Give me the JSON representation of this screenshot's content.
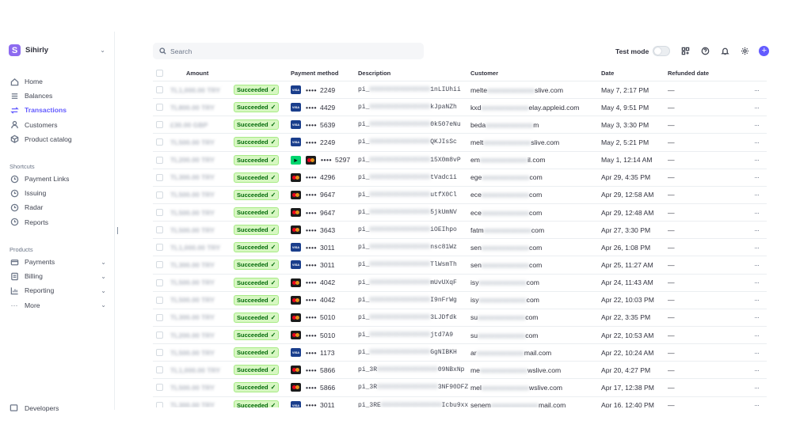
{
  "account": {
    "name": "Sihirly",
    "logo_letter": "S"
  },
  "nav": [
    {
      "label": "Home",
      "icon": "home-icon",
      "active": false
    },
    {
      "label": "Balances",
      "icon": "balances-icon",
      "active": false
    },
    {
      "label": "Transactions",
      "icon": "transactions-icon",
      "active": true
    },
    {
      "label": "Customers",
      "icon": "customers-icon",
      "active": false
    },
    {
      "label": "Product catalog",
      "icon": "product-catalog-icon",
      "active": false
    }
  ],
  "shortcuts": {
    "title": "Shortcuts",
    "items": [
      {
        "label": "Payment Links",
        "icon": "clock-icon"
      },
      {
        "label": "Issuing",
        "icon": "clock-icon"
      },
      {
        "label": "Radar",
        "icon": "clock-icon"
      },
      {
        "label": "Reports",
        "icon": "clock-icon"
      }
    ]
  },
  "products": {
    "title": "Products",
    "items": [
      {
        "label": "Payments",
        "icon": "payments-icon"
      },
      {
        "label": "Billing",
        "icon": "billing-icon"
      },
      {
        "label": "Reporting",
        "icon": "reporting-icon"
      },
      {
        "label": "More",
        "icon": "more-icon"
      }
    ]
  },
  "developers_label": "Developers",
  "search": {
    "placeholder": "Search",
    "value": ""
  },
  "topbar": {
    "test_mode_label": "Test mode",
    "test_mode_on": false
  },
  "colors": {
    "accent": "#635bff",
    "success_bg": "#d7f7c2",
    "success_text": "#006908"
  },
  "table": {
    "columns": {
      "amount": "Amount",
      "payment_method": "Payment method",
      "description": "Description",
      "customer": "Customer",
      "date": "Date",
      "refunded_date": "Refunded date"
    },
    "rows": [
      {
        "amount": "TL1,000.00 TRY",
        "status": "Succeeded",
        "card": "visa",
        "last4": "2249",
        "desc_prefix": "pi_",
        "desc_suffix": "1nLIUhii",
        "cust_prefix": "melte",
        "cust_suffix": "slive.com",
        "date": "May 7, 2:17 PM",
        "refunded": "—"
      },
      {
        "amount": "TL800.00 TRY",
        "status": "Succeeded",
        "card": "visa",
        "last4": "4429",
        "desc_prefix": "pi_",
        "desc_suffix": "kJpaNZh",
        "cust_prefix": "kxd",
        "cust_suffix": "elay.appleid.com",
        "date": "May 4, 9:51 PM",
        "refunded": "—"
      },
      {
        "amount": "£30.00 GBP",
        "status": "Succeeded",
        "card": "visa",
        "last4": "5639",
        "desc_prefix": "pi_",
        "desc_suffix": "0k507eNu",
        "cust_prefix": "beda",
        "cust_suffix": "m",
        "date": "May 3, 3:30 PM",
        "refunded": "—"
      },
      {
        "amount": "TL500.00 TRY",
        "status": "Succeeded",
        "card": "visa",
        "last4": "2249",
        "desc_prefix": "pi_",
        "desc_suffix": "QKJIsSc",
        "cust_prefix": "melt",
        "cust_suffix": "slive.com",
        "date": "May 2, 5:21 PM",
        "refunded": "—"
      },
      {
        "amount": "TL200.00 TRY",
        "status": "Succeeded",
        "card": "link",
        "last4": "5297",
        "desc_prefix": "pi_",
        "desc_suffix": "15X0m8vP",
        "cust_prefix": "em",
        "cust_suffix": "il.com",
        "date": "May 1, 12:14 AM",
        "refunded": "—"
      },
      {
        "amount": "TL300.00 TRY",
        "status": "Succeeded",
        "card": "mc",
        "last4": "4296",
        "desc_prefix": "pi_",
        "desc_suffix": "tVadc1i",
        "cust_prefix": "ege",
        "cust_suffix": "com",
        "date": "Apr 29, 4:35 PM",
        "refunded": "—"
      },
      {
        "amount": "TL500.00 TRY",
        "status": "Succeeded",
        "card": "mc",
        "last4": "9647",
        "desc_prefix": "pi_",
        "desc_suffix": "utfX0Cl",
        "cust_prefix": "ece",
        "cust_suffix": "com",
        "date": "Apr 29, 12:58 AM",
        "refunded": "—"
      },
      {
        "amount": "TL500.00 TRY",
        "status": "Succeeded",
        "card": "mc",
        "last4": "9647",
        "desc_prefix": "pi_",
        "desc_suffix": "5jkUmNV",
        "cust_prefix": "ece",
        "cust_suffix": "com",
        "date": "Apr 29, 12:48 AM",
        "refunded": "—"
      },
      {
        "amount": "TL500.00 TRY",
        "status": "Succeeded",
        "card": "mc",
        "last4": "3643",
        "desc_prefix": "pi_",
        "desc_suffix": "iOEIhpo",
        "cust_prefix": "fatm",
        "cust_suffix": "com",
        "date": "Apr 27, 3:30 PM",
        "refunded": "—"
      },
      {
        "amount": "TL1,000.00 TRY",
        "status": "Succeeded",
        "card": "visa",
        "last4": "3011",
        "desc_prefix": "pi_",
        "desc_suffix": "nsc81Wz",
        "cust_prefix": "sen",
        "cust_suffix": "com",
        "date": "Apr 26, 1:08 PM",
        "refunded": "—"
      },
      {
        "amount": "TL300.00 TRY",
        "status": "Succeeded",
        "card": "visa",
        "last4": "3011",
        "desc_prefix": "pi_",
        "desc_suffix": "TlWsmTh",
        "cust_prefix": "sen",
        "cust_suffix": "com",
        "date": "Apr 25, 11:27 AM",
        "refunded": "—"
      },
      {
        "amount": "TL500.00 TRY",
        "status": "Succeeded",
        "card": "mc",
        "last4": "4042",
        "desc_prefix": "pi_",
        "desc_suffix": "mUvUXqF",
        "cust_prefix": "isy",
        "cust_suffix": "com",
        "date": "Apr 24, 11:43 AM",
        "refunded": "—"
      },
      {
        "amount": "TL500.00 TRY",
        "status": "Succeeded",
        "card": "mc",
        "last4": "4042",
        "desc_prefix": "pi_",
        "desc_suffix": "I9nFrWg",
        "cust_prefix": "isy",
        "cust_suffix": "com",
        "date": "Apr 22, 10:03 PM",
        "refunded": "—"
      },
      {
        "amount": "TL300.00 TRY",
        "status": "Succeeded",
        "card": "mc",
        "last4": "5010",
        "desc_prefix": "pi_",
        "desc_suffix": "3LJDfdk",
        "cust_prefix": "su",
        "cust_suffix": "com",
        "date": "Apr 22, 3:35 PM",
        "refunded": "—"
      },
      {
        "amount": "TL200.00 TRY",
        "status": "Succeeded",
        "card": "mc",
        "last4": "5010",
        "desc_prefix": "pi_",
        "desc_suffix": "jtd7A9",
        "cust_prefix": "su",
        "cust_suffix": "com",
        "date": "Apr 22, 10:53 AM",
        "refunded": "—"
      },
      {
        "amount": "TL500.00 TRY",
        "status": "Succeeded",
        "card": "visa",
        "last4": "1173",
        "desc_prefix": "pi_",
        "desc_suffix": "GgNIBKH",
        "cust_prefix": "ar",
        "cust_suffix": "mail.com",
        "date": "Apr 22, 10:24 AM",
        "refunded": "—"
      },
      {
        "amount": "TL1,000.00 TRY",
        "status": "Succeeded",
        "card": "mc",
        "last4": "5866",
        "desc_prefix": "pi_3R",
        "desc_suffix": "09NBxNp",
        "cust_prefix": "me",
        "cust_suffix": "wslive.com",
        "date": "Apr 20, 4:27 PM",
        "refunded": "—"
      },
      {
        "amount": "TL500.00 TRY",
        "status": "Succeeded",
        "card": "mc",
        "last4": "5866",
        "desc_prefix": "pi_3R",
        "desc_suffix": "3NF90DFZ",
        "cust_prefix": "mel",
        "cust_suffix": "wslive.com",
        "date": "Apr 17, 12:38 PM",
        "refunded": "—"
      },
      {
        "amount": "TL300.00 TRY",
        "status": "Succeeded",
        "card": "visa",
        "last4": "3011",
        "desc_prefix": "pi_3RE",
        "desc_suffix": "Icbu9xx",
        "cust_prefix": "senem",
        "cust_suffix": "mail.com",
        "date": "Apr 16, 12:40 PM",
        "refunded": "—"
      }
    ]
  }
}
